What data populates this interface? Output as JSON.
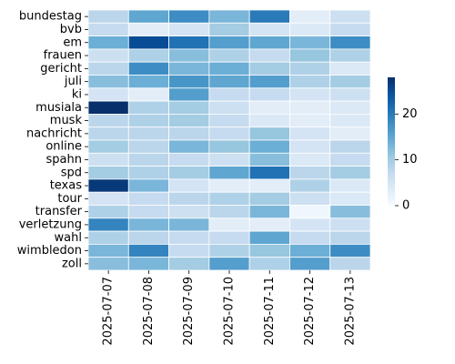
{
  "chart_data": {
    "type": "heatmap",
    "title": "",
    "xlabel": "",
    "ylabel": "",
    "x": [
      "2025-07-07",
      "2025-07-08",
      "2025-07-09",
      "2025-07-10",
      "2025-07-11",
      "2025-07-12",
      "2025-07-13"
    ],
    "y": [
      "bundestag",
      "bvb",
      "em",
      "frauen",
      "gericht",
      "juli",
      "ki",
      "musiala",
      "musk",
      "nachricht",
      "online",
      "spahn",
      "spd",
      "texas",
      "tour",
      "transfer",
      "verletzung",
      "wahl",
      "wimbledon",
      "zoll"
    ],
    "values": [
      [
        8,
        15,
        18,
        13,
        20,
        3,
        6
      ],
      [
        7,
        3,
        5,
        10,
        5,
        4,
        7
      ],
      [
        14,
        25,
        21,
        16,
        15,
        13,
        18
      ],
      [
        6,
        9,
        12,
        9,
        7,
        11,
        9
      ],
      [
        8,
        18,
        13,
        14,
        10,
        9,
        4
      ],
      [
        12,
        14,
        17,
        15,
        16,
        9,
        10
      ],
      [
        5,
        3,
        16,
        7,
        7,
        5,
        6
      ],
      [
        28,
        9,
        10,
        6,
        3,
        3,
        4
      ],
      [
        8,
        9,
        10,
        7,
        4,
        3,
        4
      ],
      [
        8,
        8,
        8,
        7,
        11,
        5,
        3
      ],
      [
        10,
        8,
        13,
        11,
        14,
        5,
        8
      ],
      [
        6,
        8,
        7,
        6,
        12,
        4,
        7
      ],
      [
        10,
        9,
        10,
        15,
        21,
        8,
        10
      ],
      [
        27,
        13,
        5,
        3,
        3,
        9,
        4
      ],
      [
        5,
        7,
        8,
        9,
        10,
        6,
        4
      ],
      [
        9,
        7,
        6,
        8,
        13,
        1,
        12
      ],
      [
        19,
        13,
        13,
        3,
        3,
        5,
        6
      ],
      [
        9,
        8,
        7,
        7,
        15,
        7,
        8
      ],
      [
        13,
        19,
        7,
        9,
        11,
        14,
        18
      ],
      [
        12,
        13,
        10,
        16,
        9,
        16,
        8
      ]
    ],
    "colorbar": {
      "min": 0,
      "max": 28,
      "ticks": [
        0,
        10,
        20
      ],
      "cmap": "Blues"
    },
    "grid": false,
    "cell_border_color": "#ffffff"
  }
}
